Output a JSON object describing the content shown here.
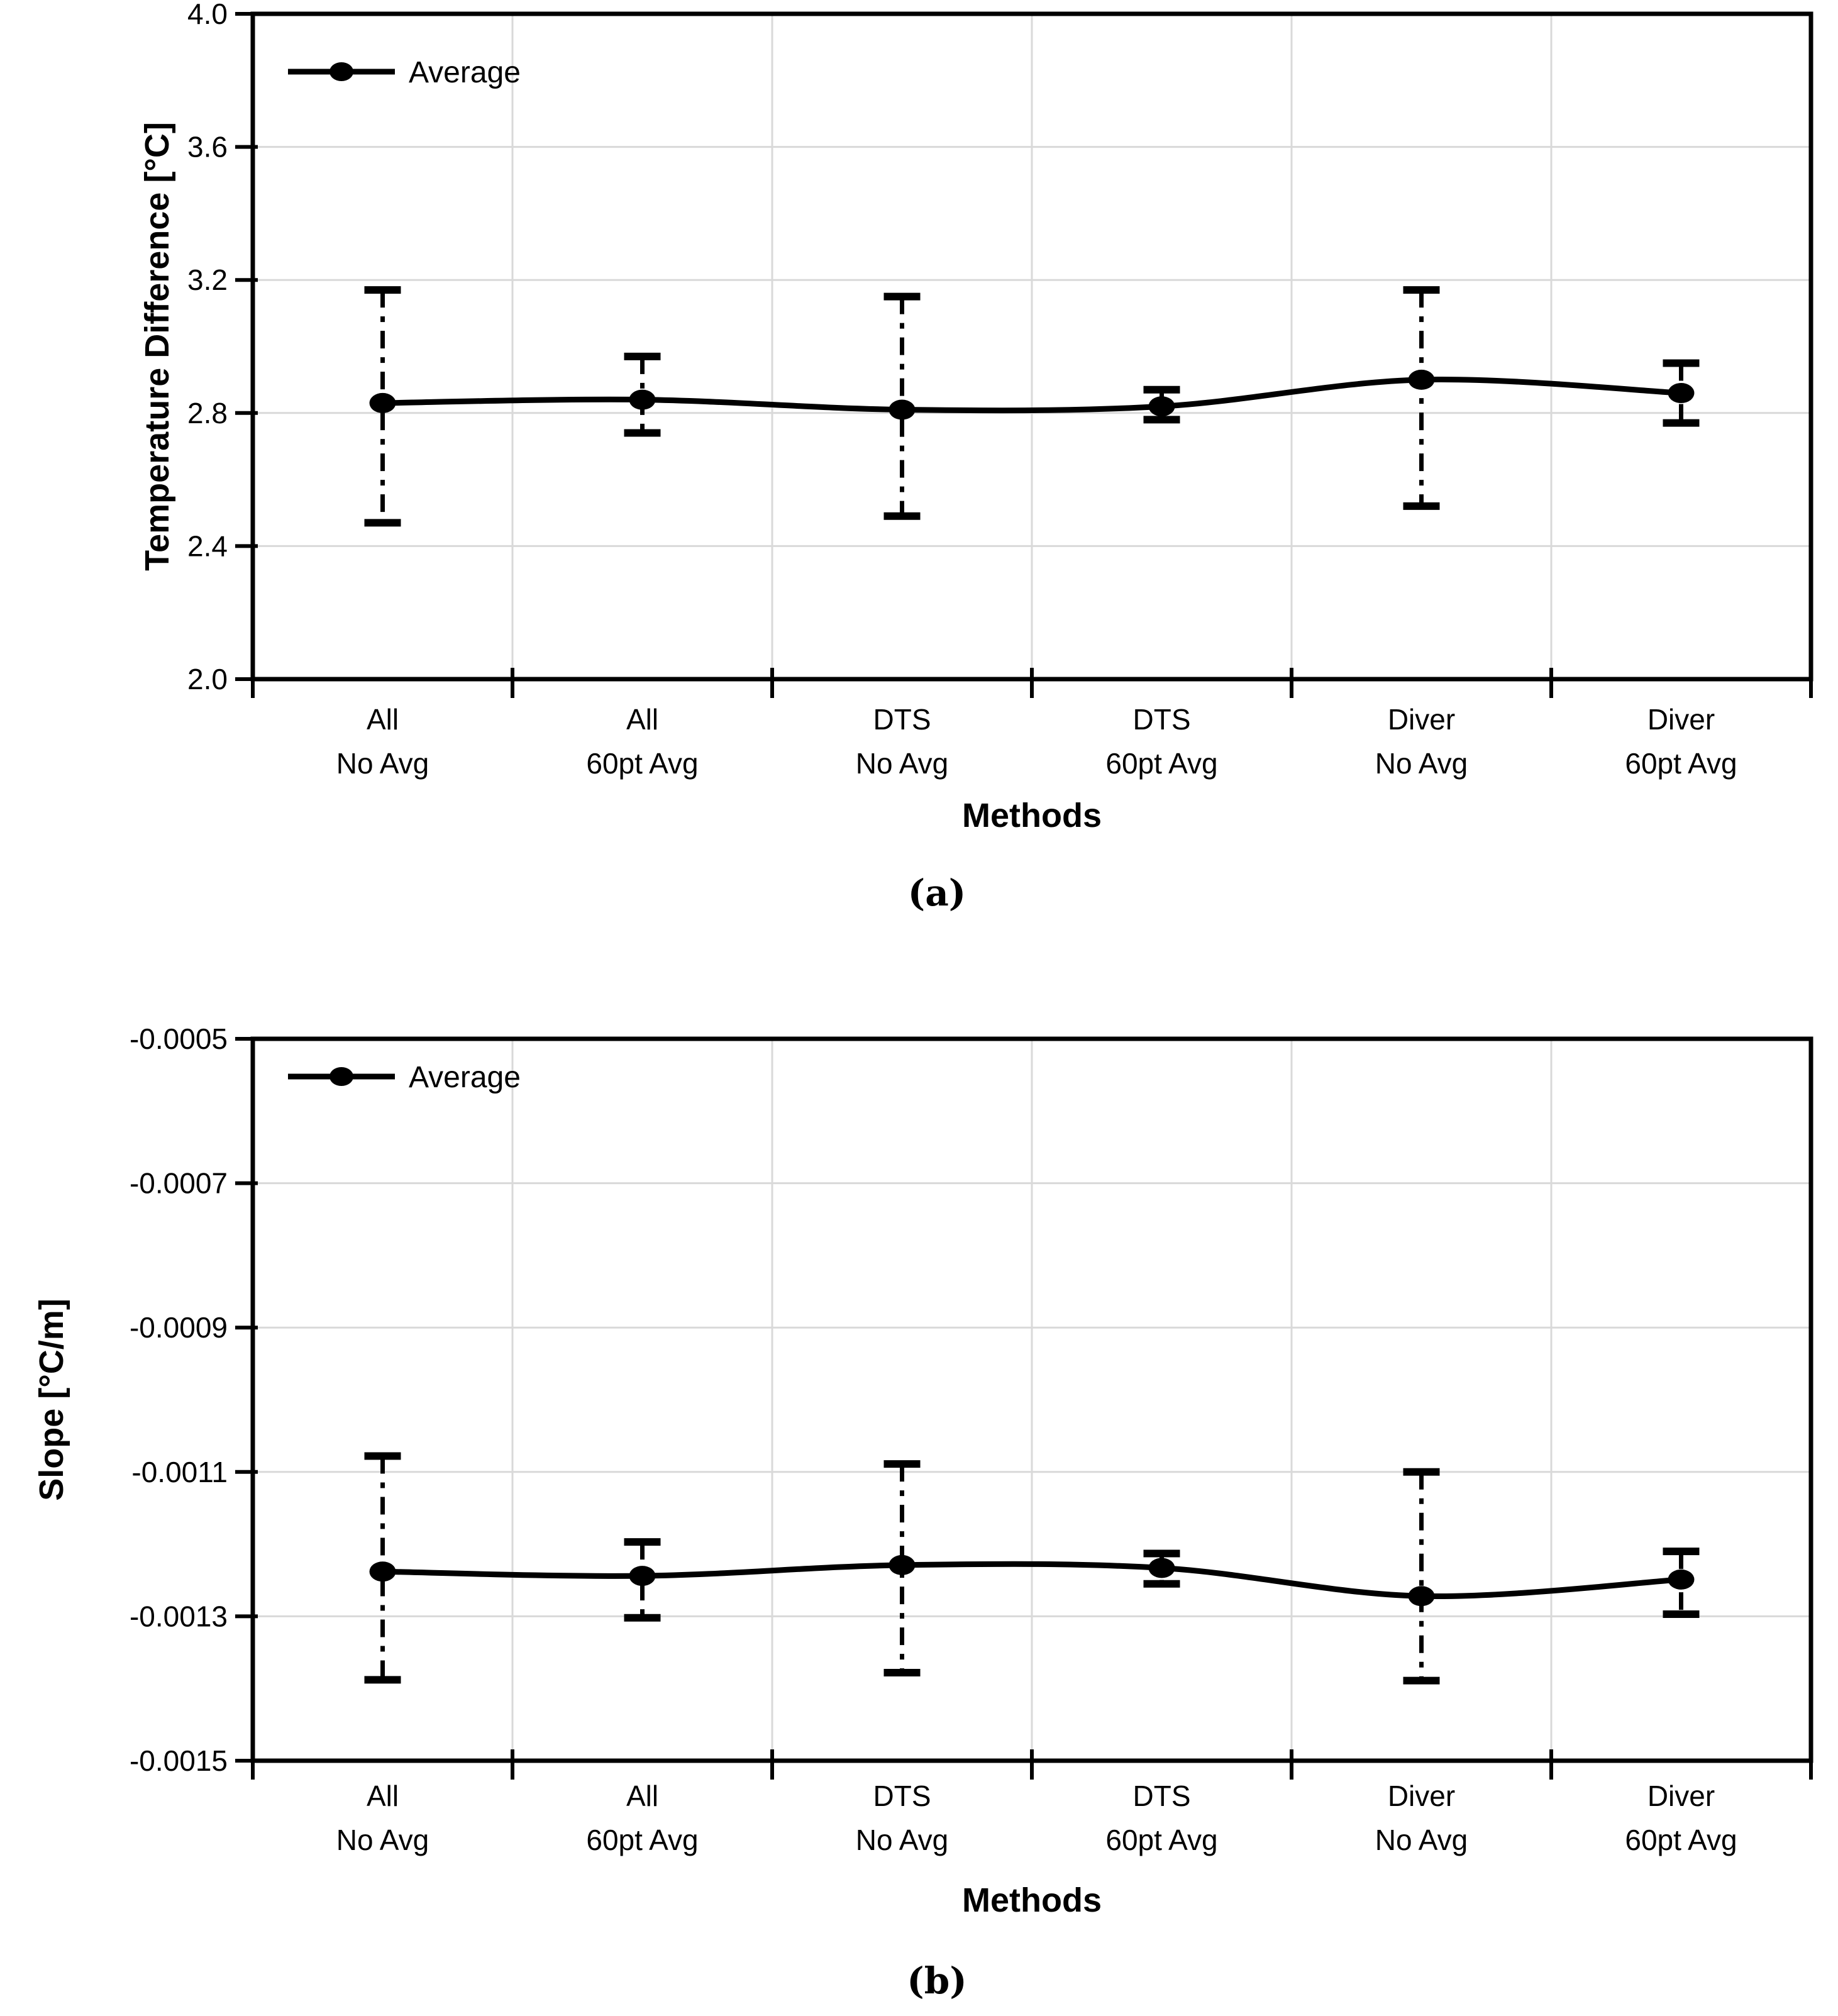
{
  "figure": {
    "background_color": "#ffffff",
    "line_color": "#000000",
    "gridline_color": "#d9d9d9",
    "marker_shape": "filled-circle",
    "error_bar_style": "dashed"
  },
  "chart_data": [
    {
      "id": "a",
      "type": "line",
      "title": "",
      "caption": "(a)",
      "xlabel": "Methods",
      "ylabel": "Temperature Difference [°C]",
      "legend": [
        {
          "label": "Average",
          "position": "top-left-inside"
        }
      ],
      "grid": true,
      "ylim": [
        2.0,
        4.0
      ],
      "yticks": [
        4.0,
        3.6,
        3.2,
        2.8,
        2.4,
        2.0
      ],
      "ytick_labels": [
        "4.0",
        "3.6",
        "3.2",
        "2.8",
        "2.4",
        "2.0"
      ],
      "categories": [
        [
          "All",
          "No Avg"
        ],
        [
          "All",
          "60pt Avg"
        ],
        [
          "DTS",
          "No Avg"
        ],
        [
          "DTS",
          "60pt Avg"
        ],
        [
          "Diver",
          "No Avg"
        ],
        [
          "Diver",
          "60pt Avg"
        ]
      ],
      "series": [
        {
          "name": "Average",
          "values": [
            2.83,
            2.84,
            2.81,
            2.82,
            2.9,
            2.86
          ],
          "error_upper": [
            3.17,
            2.97,
            3.15,
            2.87,
            3.17,
            2.95
          ],
          "error_lower": [
            2.47,
            2.74,
            2.49,
            2.78,
            2.52,
            2.77
          ]
        }
      ]
    },
    {
      "id": "b",
      "type": "line",
      "title": "",
      "caption": "(b)",
      "xlabel": "Methods",
      "ylabel": "Slope [°C/m]",
      "legend": [
        {
          "label": "Average",
          "position": "top-left-inside"
        }
      ],
      "grid": true,
      "ylim": [
        -0.0015,
        -0.0005
      ],
      "yticks": [
        -0.0005,
        -0.0007,
        -0.0009,
        -0.0011,
        -0.0013,
        -0.0015
      ],
      "ytick_labels": [
        "-0.0005",
        "-0.0007",
        "-0.0009",
        "-0.0011",
        "-0.0013",
        "-0.0015"
      ],
      "categories": [
        [
          "All",
          "No Avg"
        ],
        [
          "All",
          "60pt Avg"
        ],
        [
          "DTS",
          "No Avg"
        ],
        [
          "DTS",
          "60pt Avg"
        ],
        [
          "Diver",
          "No Avg"
        ],
        [
          "Diver",
          "60pt Avg"
        ]
      ],
      "series": [
        {
          "name": "Average",
          "values": [
            -0.001238,
            -0.001244,
            -0.001229,
            -0.001233,
            -0.001272,
            -0.001249
          ],
          "error_upper": [
            -0.001078,
            -0.001197,
            -0.001089,
            -0.001213,
            -0.0011,
            -0.00121
          ],
          "error_lower": [
            -0.001388,
            -0.001302,
            -0.001378,
            -0.001255,
            -0.001389,
            -0.001297
          ]
        }
      ]
    }
  ]
}
